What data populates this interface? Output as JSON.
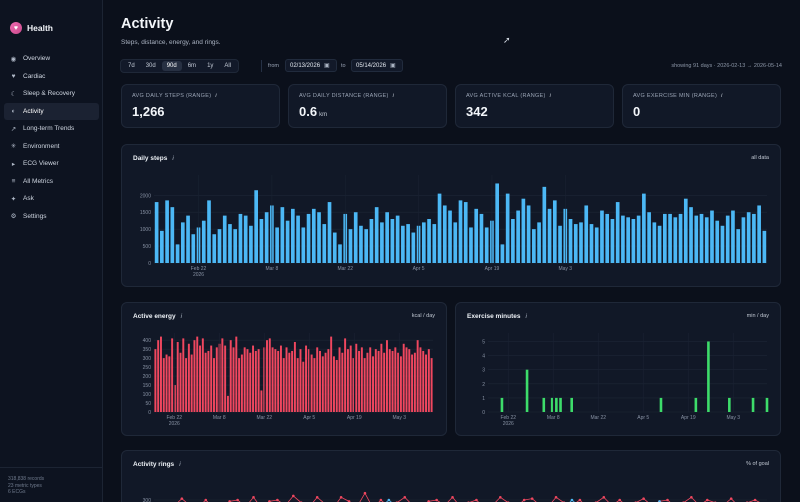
{
  "app": {
    "name": "Health",
    "logo_icon": "heart-icon"
  },
  "nav": [
    {
      "label": "Overview",
      "icon": "grid-icon",
      "glyph": "◉"
    },
    {
      "label": "Cardiac",
      "icon": "heart-icon",
      "glyph": "♥"
    },
    {
      "label": "Sleep & Recovery",
      "icon": "moon-icon",
      "glyph": "☾"
    },
    {
      "label": "Activity",
      "icon": "half-circle-icon",
      "glyph": "◐"
    },
    {
      "label": "Long-term Trends",
      "icon": "trend-arrow-icon",
      "glyph": "↗"
    },
    {
      "label": "Environment",
      "icon": "sun-icon",
      "glyph": "✳"
    },
    {
      "label": "ECG Viewer",
      "icon": "play-icon",
      "glyph": "▸"
    },
    {
      "label": "All Metrics",
      "icon": "list-icon",
      "glyph": "≡"
    },
    {
      "label": "Ask",
      "icon": "sparkle-icon",
      "glyph": "✦"
    },
    {
      "label": "Settings",
      "icon": "gear-icon",
      "glyph": "⚙"
    }
  ],
  "active_nav": "Activity",
  "footer": {
    "records": "318,838 records",
    "metrics": "23 metric types",
    "ecgs": "6 ECGs"
  },
  "page": {
    "title": "Activity",
    "subtitle": "Steps, distance, energy, and rings."
  },
  "ranges": [
    "7d",
    "30d",
    "90d",
    "6m",
    "1y",
    "All"
  ],
  "active_range": "90d",
  "date_range": {
    "from_label": "from",
    "from": "02/13/2026",
    "to_label": "to",
    "to": "05/14/2026",
    "showing": "showing 91 days · 2026-02-13 → 2026-05-14"
  },
  "stats": [
    {
      "label": "AVG DAILY STEPS (RANGE)",
      "value": "1,266",
      "unit": ""
    },
    {
      "label": "AVG DAILY DISTANCE (RANGE)",
      "value": "0.6",
      "unit": "km"
    },
    {
      "label": "AVG ACTIVE KCAL (RANGE)",
      "value": "342",
      "unit": ""
    },
    {
      "label": "AVG EXERCISE MIN (RANGE)",
      "value": "0",
      "unit": ""
    }
  ],
  "info_glyph": "i",
  "colors": {
    "steps": "#4cb8f5",
    "energy": "#f0475f",
    "exercise": "#3ddc6a",
    "rings_move": "#f0475f",
    "rings_exercise": "#4cb8f5"
  },
  "panels": {
    "steps": {
      "title": "Daily steps",
      "meta": "all data"
    },
    "energy": {
      "title": "Active energy",
      "meta": "kcal / day"
    },
    "exercise": {
      "title": "Exercise minutes",
      "meta": "min / day"
    },
    "rings": {
      "title": "Activity rings",
      "meta": "% of goal"
    }
  },
  "chart_data": [
    {
      "type": "bar",
      "name": "steps",
      "x_start": "2026-02-14",
      "ylim": [
        0,
        2600
      ],
      "yticks": [
        0,
        500,
        1000,
        1500,
        2000
      ],
      "xticks": [
        {
          "label": "Feb 22",
          "sub": "2026",
          "index": 8
        },
        {
          "label": "Mar 8",
          "sub": "",
          "index": 22
        },
        {
          "label": "Mar 22",
          "sub": "",
          "index": 36
        },
        {
          "label": "Apr 5",
          "sub": "",
          "index": 50
        },
        {
          "label": "Apr 19",
          "sub": "",
          "index": 64
        },
        {
          "label": "May 3",
          "sub": "",
          "index": 78
        }
      ],
      "values": [
        1800,
        950,
        1850,
        1650,
        550,
        1200,
        1400,
        850,
        1050,
        1250,
        1850,
        850,
        1000,
        1400,
        1150,
        1000,
        1450,
        1400,
        1100,
        2150,
        1300,
        1500,
        1700,
        1050,
        1650,
        1250,
        1600,
        1400,
        1050,
        1450,
        1600,
        1500,
        1150,
        1800,
        900,
        550,
        1450,
        1000,
        1500,
        1100,
        1000,
        1300,
        1650,
        1200,
        1500,
        1300,
        1400,
        1100,
        1150,
        900,
        1100,
        1200,
        1300,
        1150,
        2050,
        1700,
        1550,
        1200,
        1850,
        1800,
        1050,
        1600,
        1450,
        1050,
        1250,
        2350,
        550,
        2050,
        1300,
        1550,
        1900,
        1700,
        1000,
        1200,
        2250,
        1600,
        1850,
        1100,
        1600,
        1300,
        1150,
        1200,
        1700,
        1150,
        1050,
        1550,
        1450,
        1300,
        1800,
        1400,
        1350,
        1300,
        1400,
        2050,
        1500,
        1200,
        1100,
        1450,
        1450,
        1350,
        1450,
        1900,
        1650,
        1400,
        1450,
        1350,
        1550,
        1250,
        1100,
        1400,
        1550,
        1000,
        1350,
        1500,
        1450,
        1700,
        950
      ]
    },
    {
      "type": "bar",
      "name": "active energy",
      "ylim": [
        0,
        440
      ],
      "yticks": [
        0,
        50,
        100,
        150,
        200,
        250,
        300,
        350,
        400
      ],
      "xticks": [
        {
          "label": "Feb 22",
          "sub": "2026"
        },
        {
          "label": "Mar 8",
          "sub": ""
        },
        {
          "label": "Mar 22",
          "sub": ""
        },
        {
          "label": "Apr 5",
          "sub": ""
        },
        {
          "label": "Apr 19",
          "sub": ""
        },
        {
          "label": "May 3",
          "sub": ""
        }
      ],
      "values": [
        350,
        400,
        420,
        300,
        320,
        310,
        410,
        150,
        390,
        330,
        410,
        300,
        380,
        320,
        400,
        420,
        370,
        410,
        330,
        340,
        370,
        300,
        360,
        380,
        410,
        370,
        90,
        400,
        360,
        420,
        300,
        320,
        360,
        350,
        330,
        370,
        340,
        350,
        120,
        360,
        400,
        410,
        360,
        350,
        340,
        370,
        300,
        360,
        330,
        340,
        390,
        300,
        350,
        280,
        370,
        350,
        320,
        300,
        360,
        340,
        310,
        330,
        350,
        420,
        310,
        290,
        360,
        330,
        410,
        350,
        370,
        300,
        380,
        340,
        360,
        300,
        330,
        360,
        310,
        350,
        340,
        380,
        330,
        400,
        350,
        340,
        360,
        330,
        310,
        380,
        360,
        350,
        320,
        330,
        400,
        360,
        340,
        320,
        350,
        300
      ]
    },
    {
      "type": "bar",
      "name": "exercise minutes",
      "ylim": [
        0,
        5.6
      ],
      "yticks": [
        0,
        1,
        2,
        3,
        4,
        5
      ],
      "xticks": [
        {
          "label": "Feb 22",
          "sub": "2026"
        },
        {
          "label": "Mar 8",
          "sub": ""
        },
        {
          "label": "Mar 22",
          "sub": ""
        },
        {
          "label": "Apr 5",
          "sub": ""
        },
        {
          "label": "Apr 19",
          "sub": ""
        },
        {
          "label": "May 3",
          "sub": ""
        }
      ],
      "bars": [
        {
          "pos": 0.05,
          "value": 1
        },
        {
          "pos": 0.14,
          "value": 3
        },
        {
          "pos": 0.2,
          "value": 1
        },
        {
          "pos": 0.23,
          "value": 1
        },
        {
          "pos": 0.245,
          "value": 1
        },
        {
          "pos": 0.26,
          "value": 1
        },
        {
          "pos": 0.3,
          "value": 1
        },
        {
          "pos": 0.62,
          "value": 1
        },
        {
          "pos": 0.745,
          "value": 1
        },
        {
          "pos": 0.79,
          "value": 5
        },
        {
          "pos": 0.865,
          "value": 1
        },
        {
          "pos": 0.95,
          "value": 1
        },
        {
          "pos": 1.0,
          "value": 1
        }
      ]
    },
    {
      "type": "line",
      "name": "activity rings",
      "ylim": [
        0,
        600
      ],
      "yticks": [
        300
      ],
      "series": [
        {
          "color_key": "rings_move",
          "values": [
            240,
            250,
            255,
            310,
            260,
            245,
            300,
            240,
            235,
            290,
            300,
            250,
            320,
            240,
            290,
            300,
            260,
            330,
            280,
            250,
            320,
            270,
            240,
            320,
            290,
            250,
            350,
            240,
            300,
            250,
            280,
            320,
            260,
            250,
            290,
            300,
            260,
            320,
            250,
            280,
            300,
            240,
            260,
            320,
            280,
            250,
            300,
            310,
            260,
            250,
            320,
            280,
            260,
            300,
            240,
            280,
            320,
            260,
            300,
            250,
            280,
            310,
            260,
            290,
            300,
            250,
            280,
            320,
            260,
            300,
            280,
            260,
            310,
            250,
            280,
            300,
            270
          ]
        },
        {
          "color_key": "rings_exercise",
          "values": [
            null,
            null,
            null,
            null,
            null,
            null,
            null,
            null,
            null,
            null,
            null,
            null,
            null,
            null,
            null,
            null,
            null,
            null,
            null,
            null,
            null,
            null,
            null,
            null,
            null,
            null,
            null,
            null,
            250,
            300,
            250,
            null,
            null,
            null,
            null,
            null,
            null,
            null,
            null,
            null,
            null,
            null,
            null,
            null,
            null,
            null,
            null,
            null,
            null,
            null,
            null,
            240,
            300,
            250,
            null,
            null,
            null,
            null,
            null,
            null,
            null,
            null,
            250,
            290,
            250,
            null,
            null,
            null,
            null,
            null,
            null,
            null,
            null,
            null,
            null,
            null,
            null
          ]
        }
      ]
    }
  ]
}
